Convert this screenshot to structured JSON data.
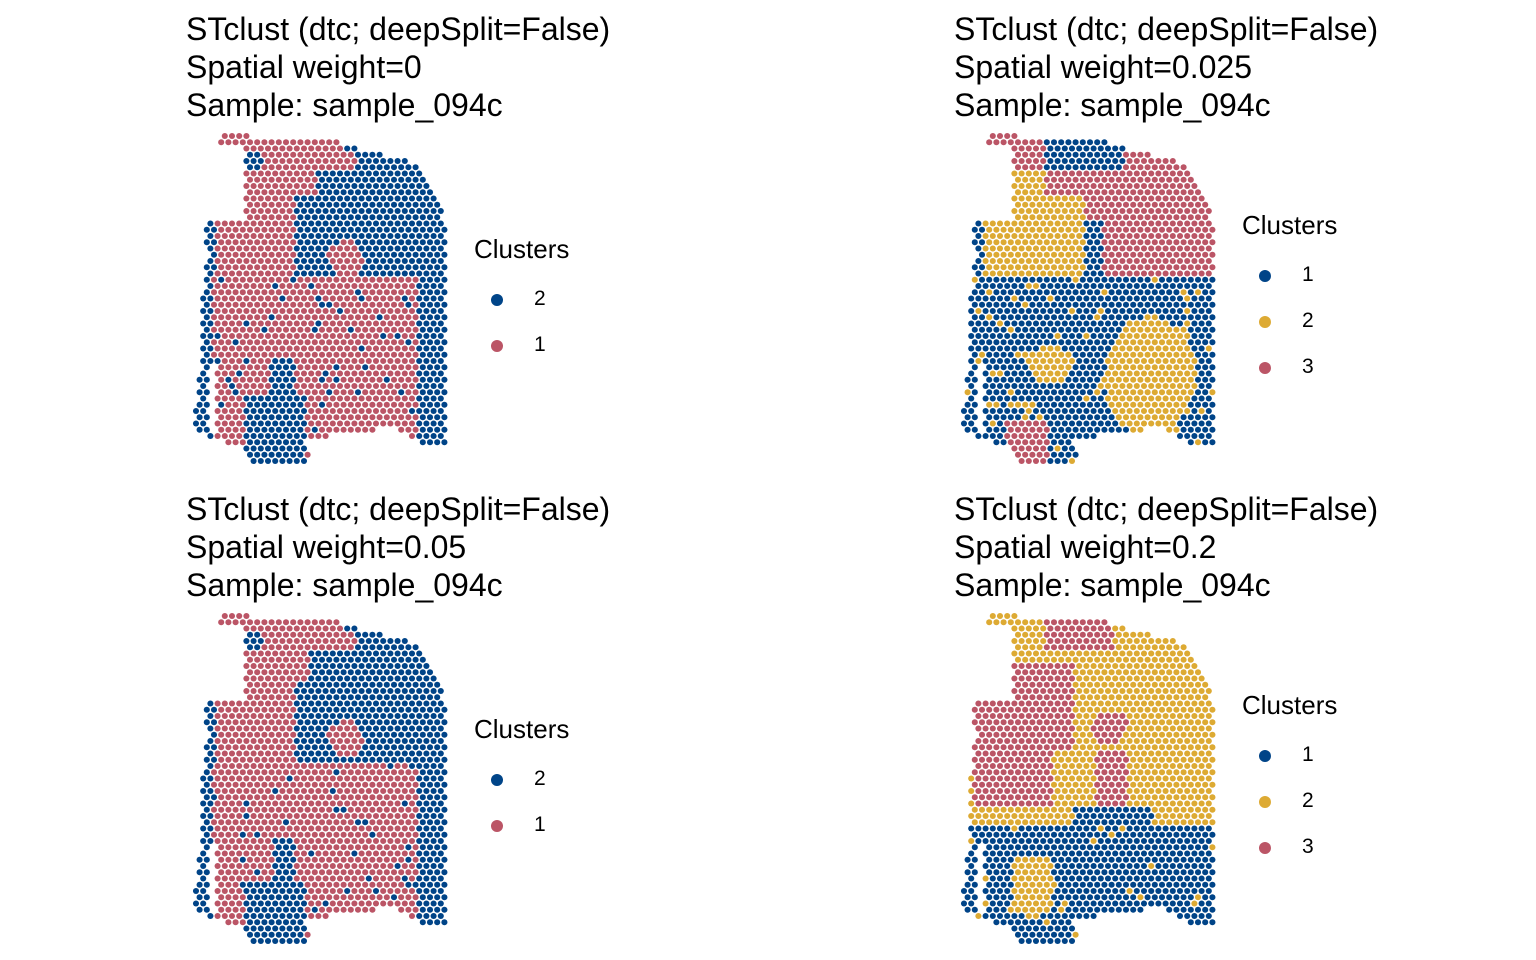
{
  "colors": {
    "blue": "#004488",
    "gold": "#DDAA33",
    "red": "#BB5566"
  },
  "chart_data": [
    {
      "type": "scatter",
      "title": [
        "STclust (dtc; deepSplit=False)",
        "Spatial weight=0",
        "Sample: sample_094c"
      ],
      "legend_title": "Clusters",
      "legend_position": "right",
      "legend": [
        {
          "label": "2",
          "color": "#004488"
        },
        {
          "label": "1",
          "color": "#BB5566"
        }
      ],
      "cluster_layout": "k2_w0"
    },
    {
      "type": "scatter",
      "title": [
        "STclust (dtc; deepSplit=False)",
        "Spatial weight=0.025",
        "Sample: sample_094c"
      ],
      "legend_title": "Clusters",
      "legend_position": "right",
      "legend": [
        {
          "label": "1",
          "color": "#004488"
        },
        {
          "label": "2",
          "color": "#DDAA33"
        },
        {
          "label": "3",
          "color": "#BB5566"
        }
      ],
      "cluster_layout": "k3_w025"
    },
    {
      "type": "scatter",
      "title": [
        "STclust (dtc; deepSplit=False)",
        "Spatial weight=0.05",
        "Sample: sample_094c"
      ],
      "legend_title": "Clusters",
      "legend_position": "right",
      "legend": [
        {
          "label": "2",
          "color": "#004488"
        },
        {
          "label": "1",
          "color": "#BB5566"
        }
      ],
      "cluster_layout": "k2_w05"
    },
    {
      "type": "scatter",
      "title": [
        "STclust (dtc; deepSplit=False)",
        "Spatial weight=0.2",
        "Sample: sample_094c"
      ],
      "legend_title": "Clusters",
      "legend_position": "right",
      "legend": [
        {
          "label": "1",
          "color": "#004488"
        },
        {
          "label": "2",
          "color": "#DDAA33"
        },
        {
          "label": "3",
          "color": "#BB5566"
        }
      ],
      "cluster_layout": "k3_w2"
    }
  ]
}
